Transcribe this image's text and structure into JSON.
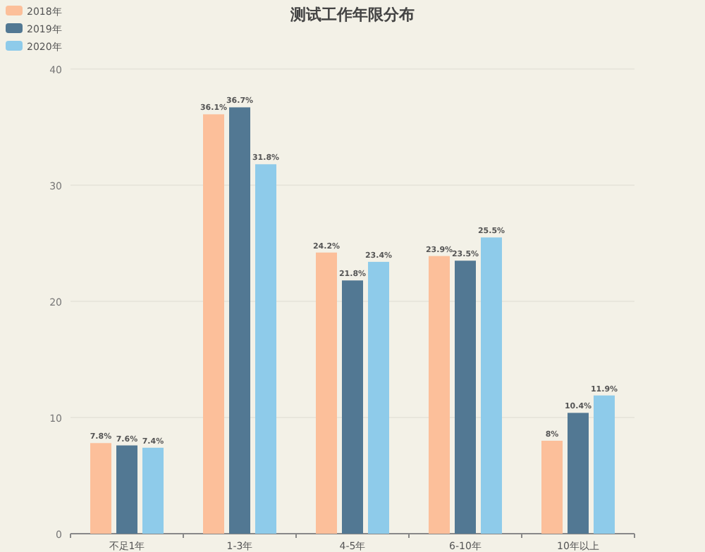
{
  "chart_data": {
    "type": "bar",
    "title": "测试工作年限分布",
    "categories": [
      "不足1年",
      "1-3年",
      "4-5年",
      "6-10年",
      "10年以上"
    ],
    "series": [
      {
        "name": "2018年",
        "color": "#fcbf9a",
        "values": [
          7.8,
          36.1,
          24.2,
          23.9,
          8
        ],
        "value_labels": [
          "7.8%",
          "36.1%",
          "24.2%",
          "23.9%",
          "8%"
        ]
      },
      {
        "name": "2019年",
        "color": "#527893",
        "values": [
          7.6,
          36.7,
          21.8,
          23.5,
          10.4
        ],
        "value_labels": [
          "7.6%",
          "36.7%",
          "21.8%",
          "23.5%",
          "10.4%"
        ]
      },
      {
        "name": "2020年",
        "color": "#8ecbea",
        "values": [
          7.4,
          31.8,
          23.4,
          25.5,
          11.9
        ],
        "value_labels": [
          "7.4%",
          "31.8%",
          "23.4%",
          "25.5%",
          "11.9%"
        ]
      }
    ],
    "ylim": [
      0,
      40
    ],
    "yticks": [
      0,
      10,
      20,
      30,
      40
    ],
    "grid": "y",
    "legend": "top left"
  }
}
